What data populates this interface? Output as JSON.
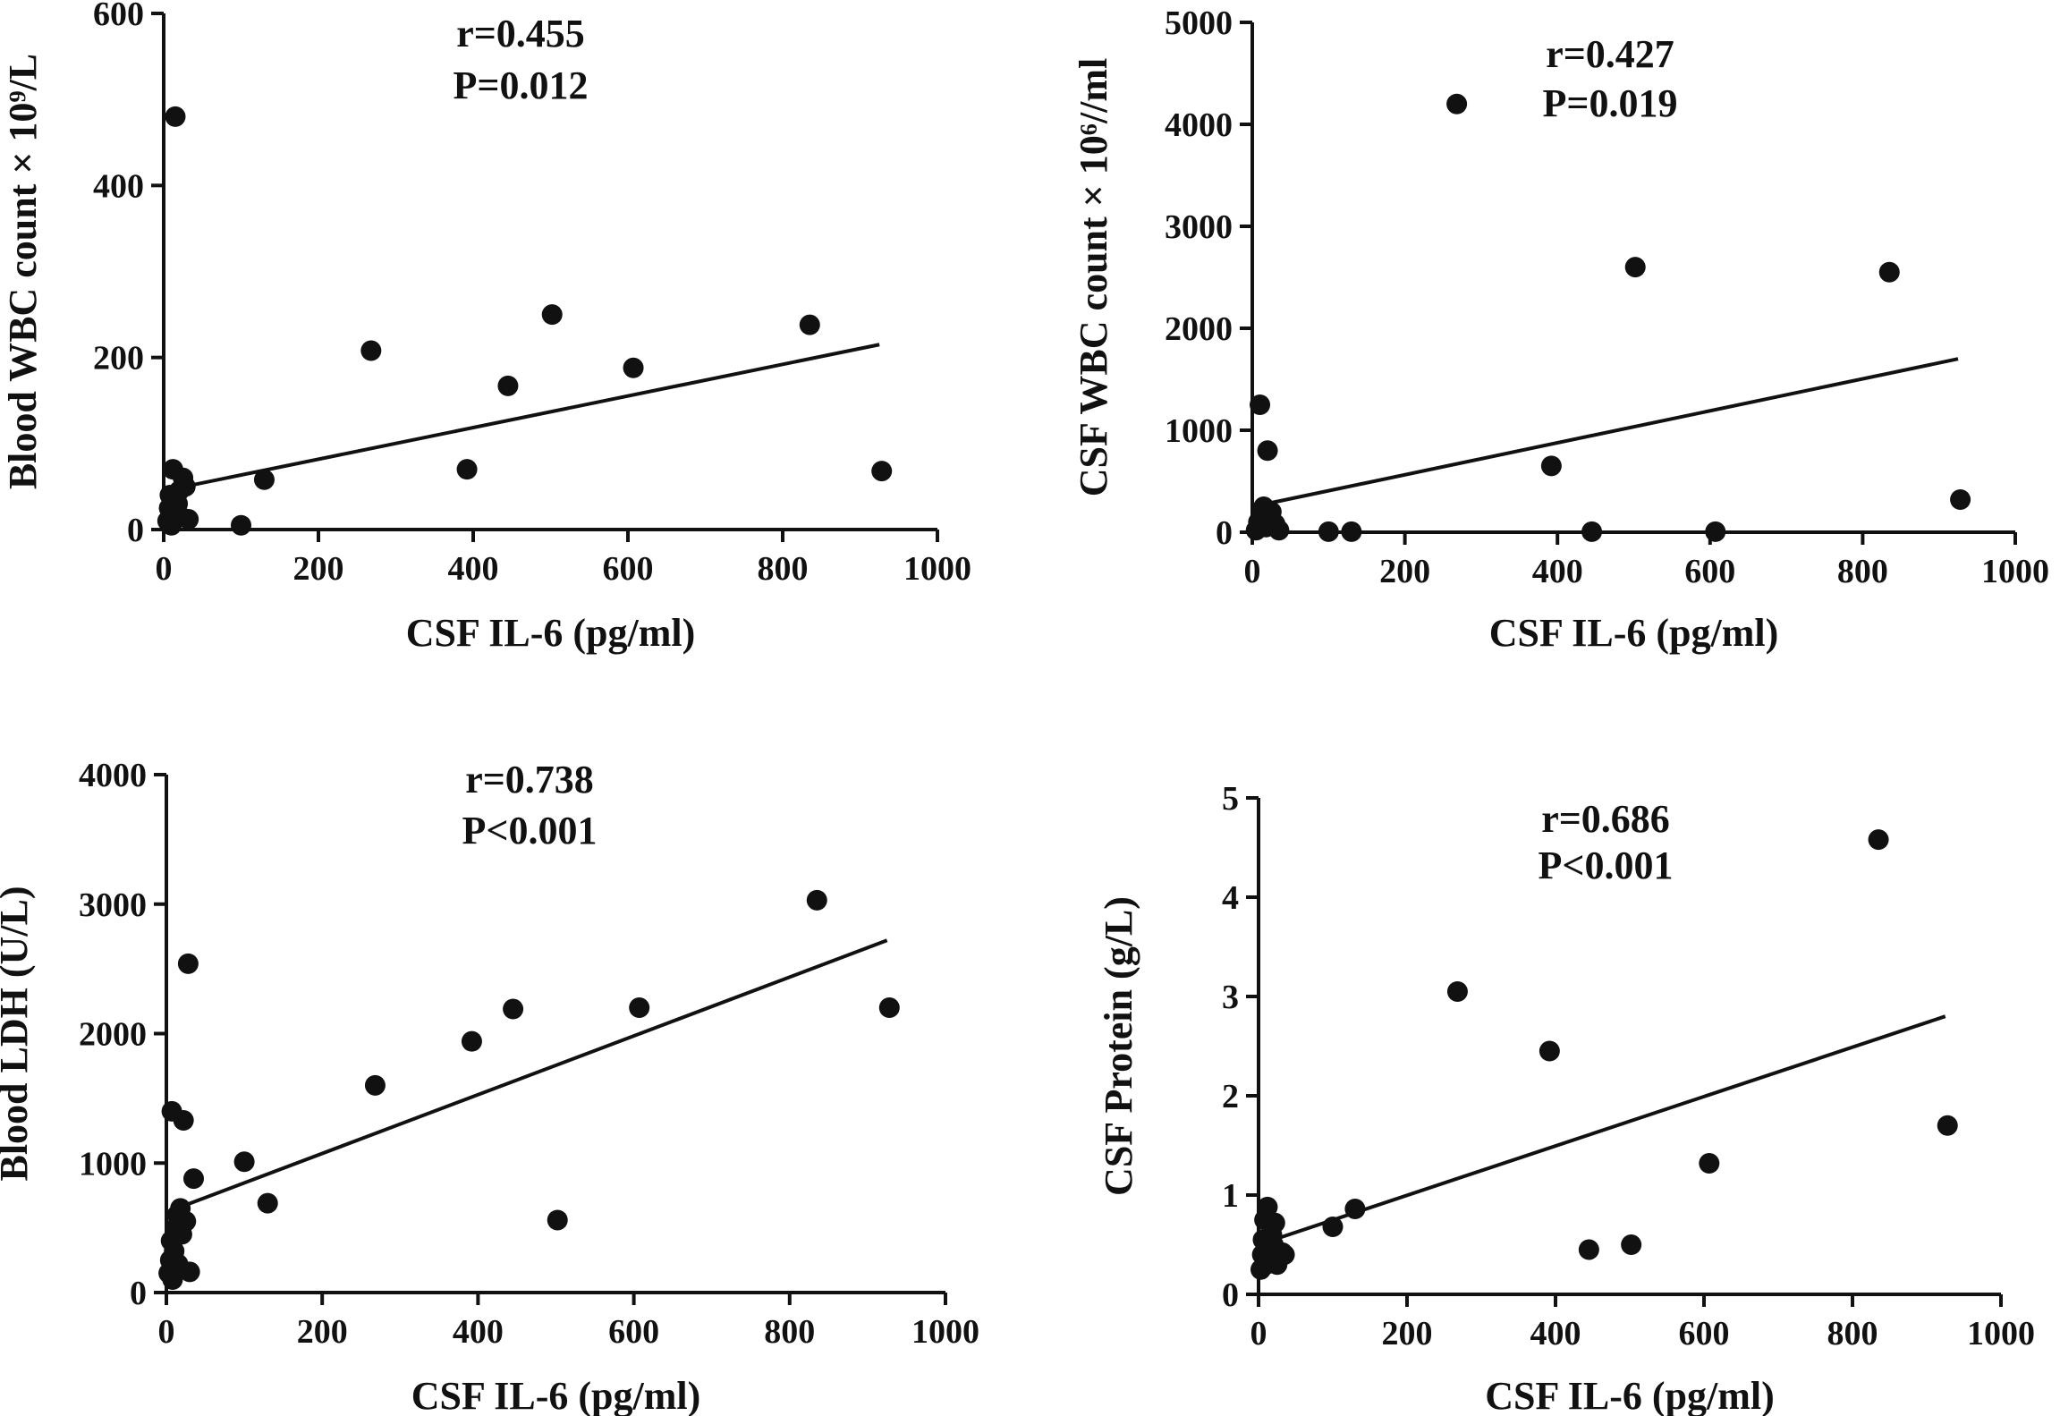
{
  "chart_data": [
    {
      "type": "scatter",
      "id": "blood-wbc",
      "xlabel": "CSF IL-6  (pg/ml)",
      "ylabel": "Blood WBC count × 10⁹/L",
      "xlim": [
        0,
        1000
      ],
      "ylim": [
        0,
        600
      ],
      "xticks": [
        "0",
        "200",
        "400",
        "600",
        "800",
        "1000"
      ],
      "yticks": [
        "0",
        "200",
        "400",
        "600"
      ],
      "r_label": "r=0.455",
      "p_label": "P=0.012",
      "fit_line": [
        [
          0,
          45
        ],
        [
          925,
          215
        ]
      ],
      "points": [
        [
          5,
          10
        ],
        [
          7,
          25
        ],
        [
          8,
          40
        ],
        [
          10,
          5
        ],
        [
          12,
          70
        ],
        [
          15,
          480
        ],
        [
          18,
          30
        ],
        [
          20,
          45
        ],
        [
          22,
          15
        ],
        [
          25,
          60
        ],
        [
          28,
          50
        ],
        [
          32,
          12
        ],
        [
          100,
          5
        ],
        [
          130,
          58
        ],
        [
          268,
          208
        ],
        [
          392,
          70
        ],
        [
          445,
          167
        ],
        [
          502,
          250
        ],
        [
          607,
          188
        ],
        [
          835,
          238
        ],
        [
          928,
          68
        ]
      ]
    },
    {
      "type": "scatter",
      "id": "csf-wbc",
      "xlabel": "CSF IL-6  (pg/ml)",
      "ylabel": "CSF WBC count × 10⁶//ml",
      "xlim": [
        0,
        1000
      ],
      "ylim": [
        0,
        5000
      ],
      "xticks": [
        "0",
        "200",
        "400",
        "600",
        "800",
        "1000"
      ],
      "yticks": [
        "0",
        "1000",
        "2000",
        "3000",
        "4000",
        "5000"
      ],
      "r_label": "r=0.427",
      "p_label": "P=0.019",
      "fit_line": [
        [
          0,
          250
        ],
        [
          925,
          1700
        ]
      ],
      "points": [
        [
          5,
          20
        ],
        [
          8,
          100
        ],
        [
          10,
          1250
        ],
        [
          12,
          180
        ],
        [
          15,
          250
        ],
        [
          18,
          50
        ],
        [
          20,
          800
        ],
        [
          22,
          130
        ],
        [
          25,
          200
        ],
        [
          30,
          80
        ],
        [
          35,
          20
        ],
        [
          100,
          5
        ],
        [
          130,
          5
        ],
        [
          268,
          4200
        ],
        [
          392,
          650
        ],
        [
          445,
          5
        ],
        [
          502,
          2600
        ],
        [
          607,
          5
        ],
        [
          835,
          2550
        ],
        [
          928,
          320
        ]
      ]
    },
    {
      "type": "scatter",
      "id": "blood-ldh",
      "xlabel": "CSF IL-6  (pg/ml)",
      "ylabel": "Blood LDH (U/L)",
      "xlim": [
        0,
        1000
      ],
      "ylim": [
        0,
        4000
      ],
      "xticks": [
        "0",
        "200",
        "400",
        "600",
        "800",
        "1000"
      ],
      "yticks": [
        "0",
        "1000",
        "2000",
        "3000",
        "4000"
      ],
      "r_label": "r=0.738",
      "p_label": "P<0.001",
      "fit_line": [
        [
          0,
          620
        ],
        [
          925,
          2720
        ]
      ],
      "points": [
        [
          3,
          150
        ],
        [
          5,
          250
        ],
        [
          6,
          400
        ],
        [
          7,
          1400
        ],
        [
          8,
          100
        ],
        [
          10,
          320
        ],
        [
          12,
          500
        ],
        [
          14,
          600
        ],
        [
          15,
          220
        ],
        [
          18,
          650
        ],
        [
          20,
          450
        ],
        [
          22,
          1330
        ],
        [
          25,
          550
        ],
        [
          28,
          2540
        ],
        [
          30,
          160
        ],
        [
          35,
          880
        ],
        [
          100,
          1010
        ],
        [
          130,
          690
        ],
        [
          268,
          1600
        ],
        [
          392,
          1940
        ],
        [
          445,
          2190
        ],
        [
          502,
          560
        ],
        [
          607,
          2200
        ],
        [
          835,
          3030
        ],
        [
          928,
          2200
        ]
      ]
    },
    {
      "type": "scatter",
      "id": "csf-protein",
      "xlabel": "CSF IL-6 (pg/ml)",
      "ylabel": "CSF Protein (g/L)",
      "xlim": [
        0,
        1000
      ],
      "ylim": [
        0,
        5
      ],
      "xticks": [
        "0",
        "200",
        "400",
        "600",
        "800",
        "1000"
      ],
      "yticks": [
        "0",
        "1",
        "2",
        "3",
        "4",
        "5"
      ],
      "r_label": "r=0.686",
      "p_label": "P<0.001",
      "fit_line": [
        [
          0,
          0.5
        ],
        [
          925,
          2.8
        ]
      ],
      "points": [
        [
          3,
          0.25
        ],
        [
          5,
          0.4
        ],
        [
          6,
          0.55
        ],
        [
          8,
          0.75
        ],
        [
          10,
          0.3
        ],
        [
          12,
          0.88
        ],
        [
          14,
          0.45
        ],
        [
          15,
          0.35
        ],
        [
          18,
          0.6
        ],
        [
          20,
          0.5
        ],
        [
          22,
          0.72
        ],
        [
          25,
          0.3
        ],
        [
          28,
          0.38
        ],
        [
          32,
          0.42
        ],
        [
          35,
          0.4
        ],
        [
          100,
          0.68
        ],
        [
          130,
          0.86
        ],
        [
          268,
          3.05
        ],
        [
          392,
          2.45
        ],
        [
          445,
          0.45
        ],
        [
          502,
          0.5
        ],
        [
          607,
          1.32
        ],
        [
          835,
          4.58
        ],
        [
          928,
          1.7
        ]
      ]
    }
  ]
}
